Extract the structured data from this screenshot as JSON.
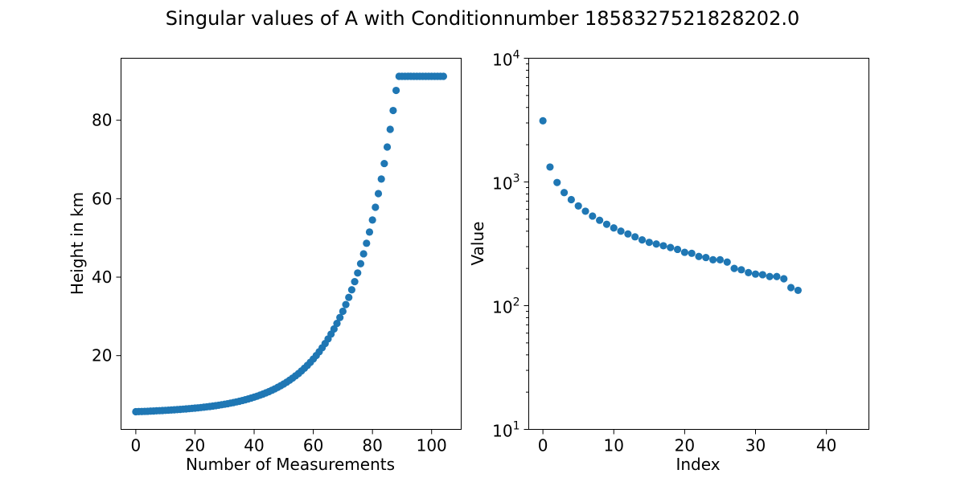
{
  "figure": {
    "title": "Singular values of A with Conditionnumber 1858327521828202.0"
  },
  "chart_data": [
    {
      "type": "scatter",
      "xlabel": "Number of Measurements",
      "ylabel": "Height in km",
      "xlim": [
        -5,
        110
      ],
      "ylim": [
        1.2,
        95.8
      ],
      "x_ticks": [
        0,
        20,
        40,
        60,
        80,
        100
      ],
      "y_ticks": [
        20,
        40,
        60,
        80
      ],
      "color": "#1f77b4",
      "grid": false,
      "x": [
        0,
        1,
        2,
        3,
        4,
        5,
        6,
        7,
        8,
        9,
        10,
        11,
        12,
        13,
        14,
        15,
        16,
        17,
        18,
        19,
        20,
        21,
        22,
        23,
        24,
        25,
        26,
        27,
        28,
        29,
        30,
        31,
        32,
        33,
        34,
        35,
        36,
        37,
        38,
        39,
        40,
        41,
        42,
        43,
        44,
        45,
        46,
        47,
        48,
        49,
        50,
        51,
        52,
        53,
        54,
        55,
        56,
        57,
        58,
        59,
        60,
        61,
        62,
        63,
        64,
        65,
        66,
        67,
        68,
        69,
        70,
        71,
        72,
        73,
        74,
        75,
        76,
        77,
        78,
        79,
        80,
        81,
        82,
        83,
        84,
        85,
        86,
        87,
        88,
        89,
        90,
        91,
        92,
        93,
        94,
        95,
        96,
        97,
        98,
        99,
        100,
        101,
        102,
        103,
        104
      ],
      "y": [
        5.7,
        5.73,
        5.76,
        5.79,
        5.82,
        5.86,
        5.89,
        5.93,
        5.97,
        6.01,
        6.05,
        6.1,
        6.14,
        6.19,
        6.24,
        6.3,
        6.36,
        6.42,
        6.48,
        6.55,
        6.62,
        6.69,
        6.77,
        6.86,
        6.95,
        7.04,
        7.14,
        7.25,
        7.36,
        7.48,
        7.61,
        7.74,
        7.89,
        8.04,
        8.2,
        8.37,
        8.56,
        8.75,
        8.96,
        9.18,
        9.41,
        9.66,
        9.93,
        10.21,
        10.51,
        10.83,
        11.17,
        11.53,
        11.92,
        12.33,
        12.77,
        13.24,
        13.74,
        14.27,
        14.84,
        15.44,
        16.09,
        16.78,
        17.51,
        18.3,
        19.13,
        20.03,
        20.98,
        22.0,
        23.09,
        24.25,
        25.48,
        26.8,
        28.21,
        29.71,
        31.31,
        33.02,
        34.84,
        36.78,
        38.86,
        41.07,
        43.43,
        45.95,
        48.64,
        51.5,
        54.56,
        57.82,
        61.3,
        65.01,
        68.96,
        73.18,
        77.68,
        82.48,
        87.6,
        91.2,
        91.2,
        91.2,
        91.2,
        91.2,
        91.2,
        91.2,
        91.2,
        91.2,
        91.2,
        91.2,
        91.2,
        91.2,
        91.2,
        91.2,
        91.2
      ]
    },
    {
      "type": "scatter",
      "xlabel": "Index",
      "ylabel": "Value",
      "xlim": [
        -2,
        46
      ],
      "ylim": [
        10,
        10000
      ],
      "y_scale": "log",
      "x_ticks": [
        0,
        10,
        20,
        30,
        40
      ],
      "y_ticks": [
        10,
        100,
        1000,
        10000
      ],
      "y_tick_labels": [
        {
          "base": "10",
          "exp": "1"
        },
        {
          "base": "10",
          "exp": "2"
        },
        {
          "base": "10",
          "exp": "3"
        },
        {
          "base": "10",
          "exp": "4"
        }
      ],
      "color": "#1f77b4",
      "grid": false,
      "x": [
        0,
        1,
        2,
        3,
        4,
        5,
        6,
        7,
        8,
        9,
        10,
        11,
        12,
        13,
        14,
        15,
        16,
        17,
        18,
        19,
        20,
        21,
        22,
        23,
        24,
        25,
        26,
        27,
        28,
        29,
        30,
        31,
        32,
        33,
        34,
        35,
        36
      ],
      "y": [
        3120,
        1320,
        990,
        820,
        720,
        640,
        580,
        530,
        490,
        455,
        425,
        400,
        380,
        360,
        340,
        325,
        315,
        305,
        295,
        285,
        270,
        265,
        250,
        245,
        235,
        235,
        225,
        200,
        195,
        185,
        180,
        178,
        172,
        172,
        165,
        140,
        133
      ]
    }
  ]
}
